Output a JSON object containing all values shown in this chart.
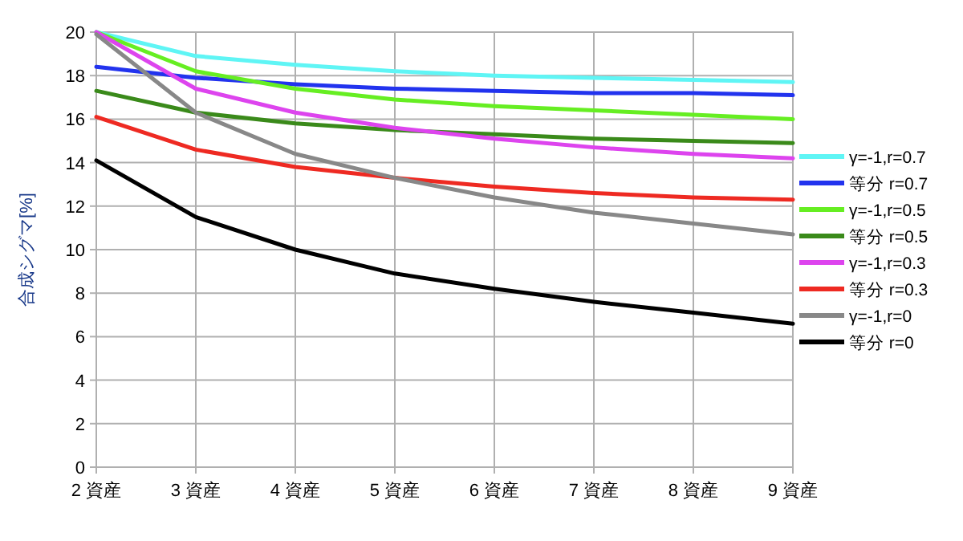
{
  "chart_data": {
    "type": "line",
    "ylabel": "合成シグマ[%]",
    "categories": [
      "2 資産",
      "3 資産",
      "4 資産",
      "5 資産",
      "6 資産",
      "7 資産",
      "8 資産",
      "9 資産"
    ],
    "ylim": [
      0,
      20
    ],
    "yticks": [
      0,
      2,
      4,
      6,
      8,
      10,
      12,
      14,
      16,
      18,
      20
    ],
    "grid": true,
    "legend": "right",
    "marker": "none",
    "line_style": "solid",
    "series": [
      {
        "name": "γ=-1,r=0.7",
        "color": "#5ff5f5",
        "values": [
          20,
          18.9,
          18.5,
          18.2,
          18.0,
          17.9,
          17.8,
          17.7
        ]
      },
      {
        "name": "等分 r=0.7",
        "color": "#2233ee",
        "values": [
          18.4,
          17.9,
          17.6,
          17.4,
          17.3,
          17.2,
          17.2,
          17.1
        ]
      },
      {
        "name": "γ=-1,r=0.5",
        "color": "#66ee22",
        "values": [
          20,
          18.2,
          17.4,
          16.9,
          16.6,
          16.4,
          16.2,
          16.0
        ]
      },
      {
        "name": "等分 r=0.5",
        "color": "#3a8a1a",
        "values": [
          17.3,
          16.3,
          15.8,
          15.5,
          15.3,
          15.1,
          15.0,
          14.9
        ]
      },
      {
        "name": "γ=-1,r=0.3",
        "color": "#dd44ee",
        "values": [
          20,
          17.4,
          16.3,
          15.6,
          15.1,
          14.7,
          14.4,
          14.2
        ]
      },
      {
        "name": "等分 r=0.3",
        "color": "#ee2a22",
        "values": [
          16.1,
          14.6,
          13.8,
          13.3,
          12.9,
          12.6,
          12.4,
          12.3
        ]
      },
      {
        "name": "γ=-1,r=0",
        "color": "#888888",
        "values": [
          19.9,
          16.3,
          14.4,
          13.3,
          12.4,
          11.7,
          11.2,
          10.7
        ]
      },
      {
        "name": "等分 r=0",
        "color": "#000000",
        "values": [
          14.1,
          11.5,
          10.0,
          8.9,
          8.2,
          7.6,
          7.1,
          6.6
        ]
      }
    ]
  }
}
